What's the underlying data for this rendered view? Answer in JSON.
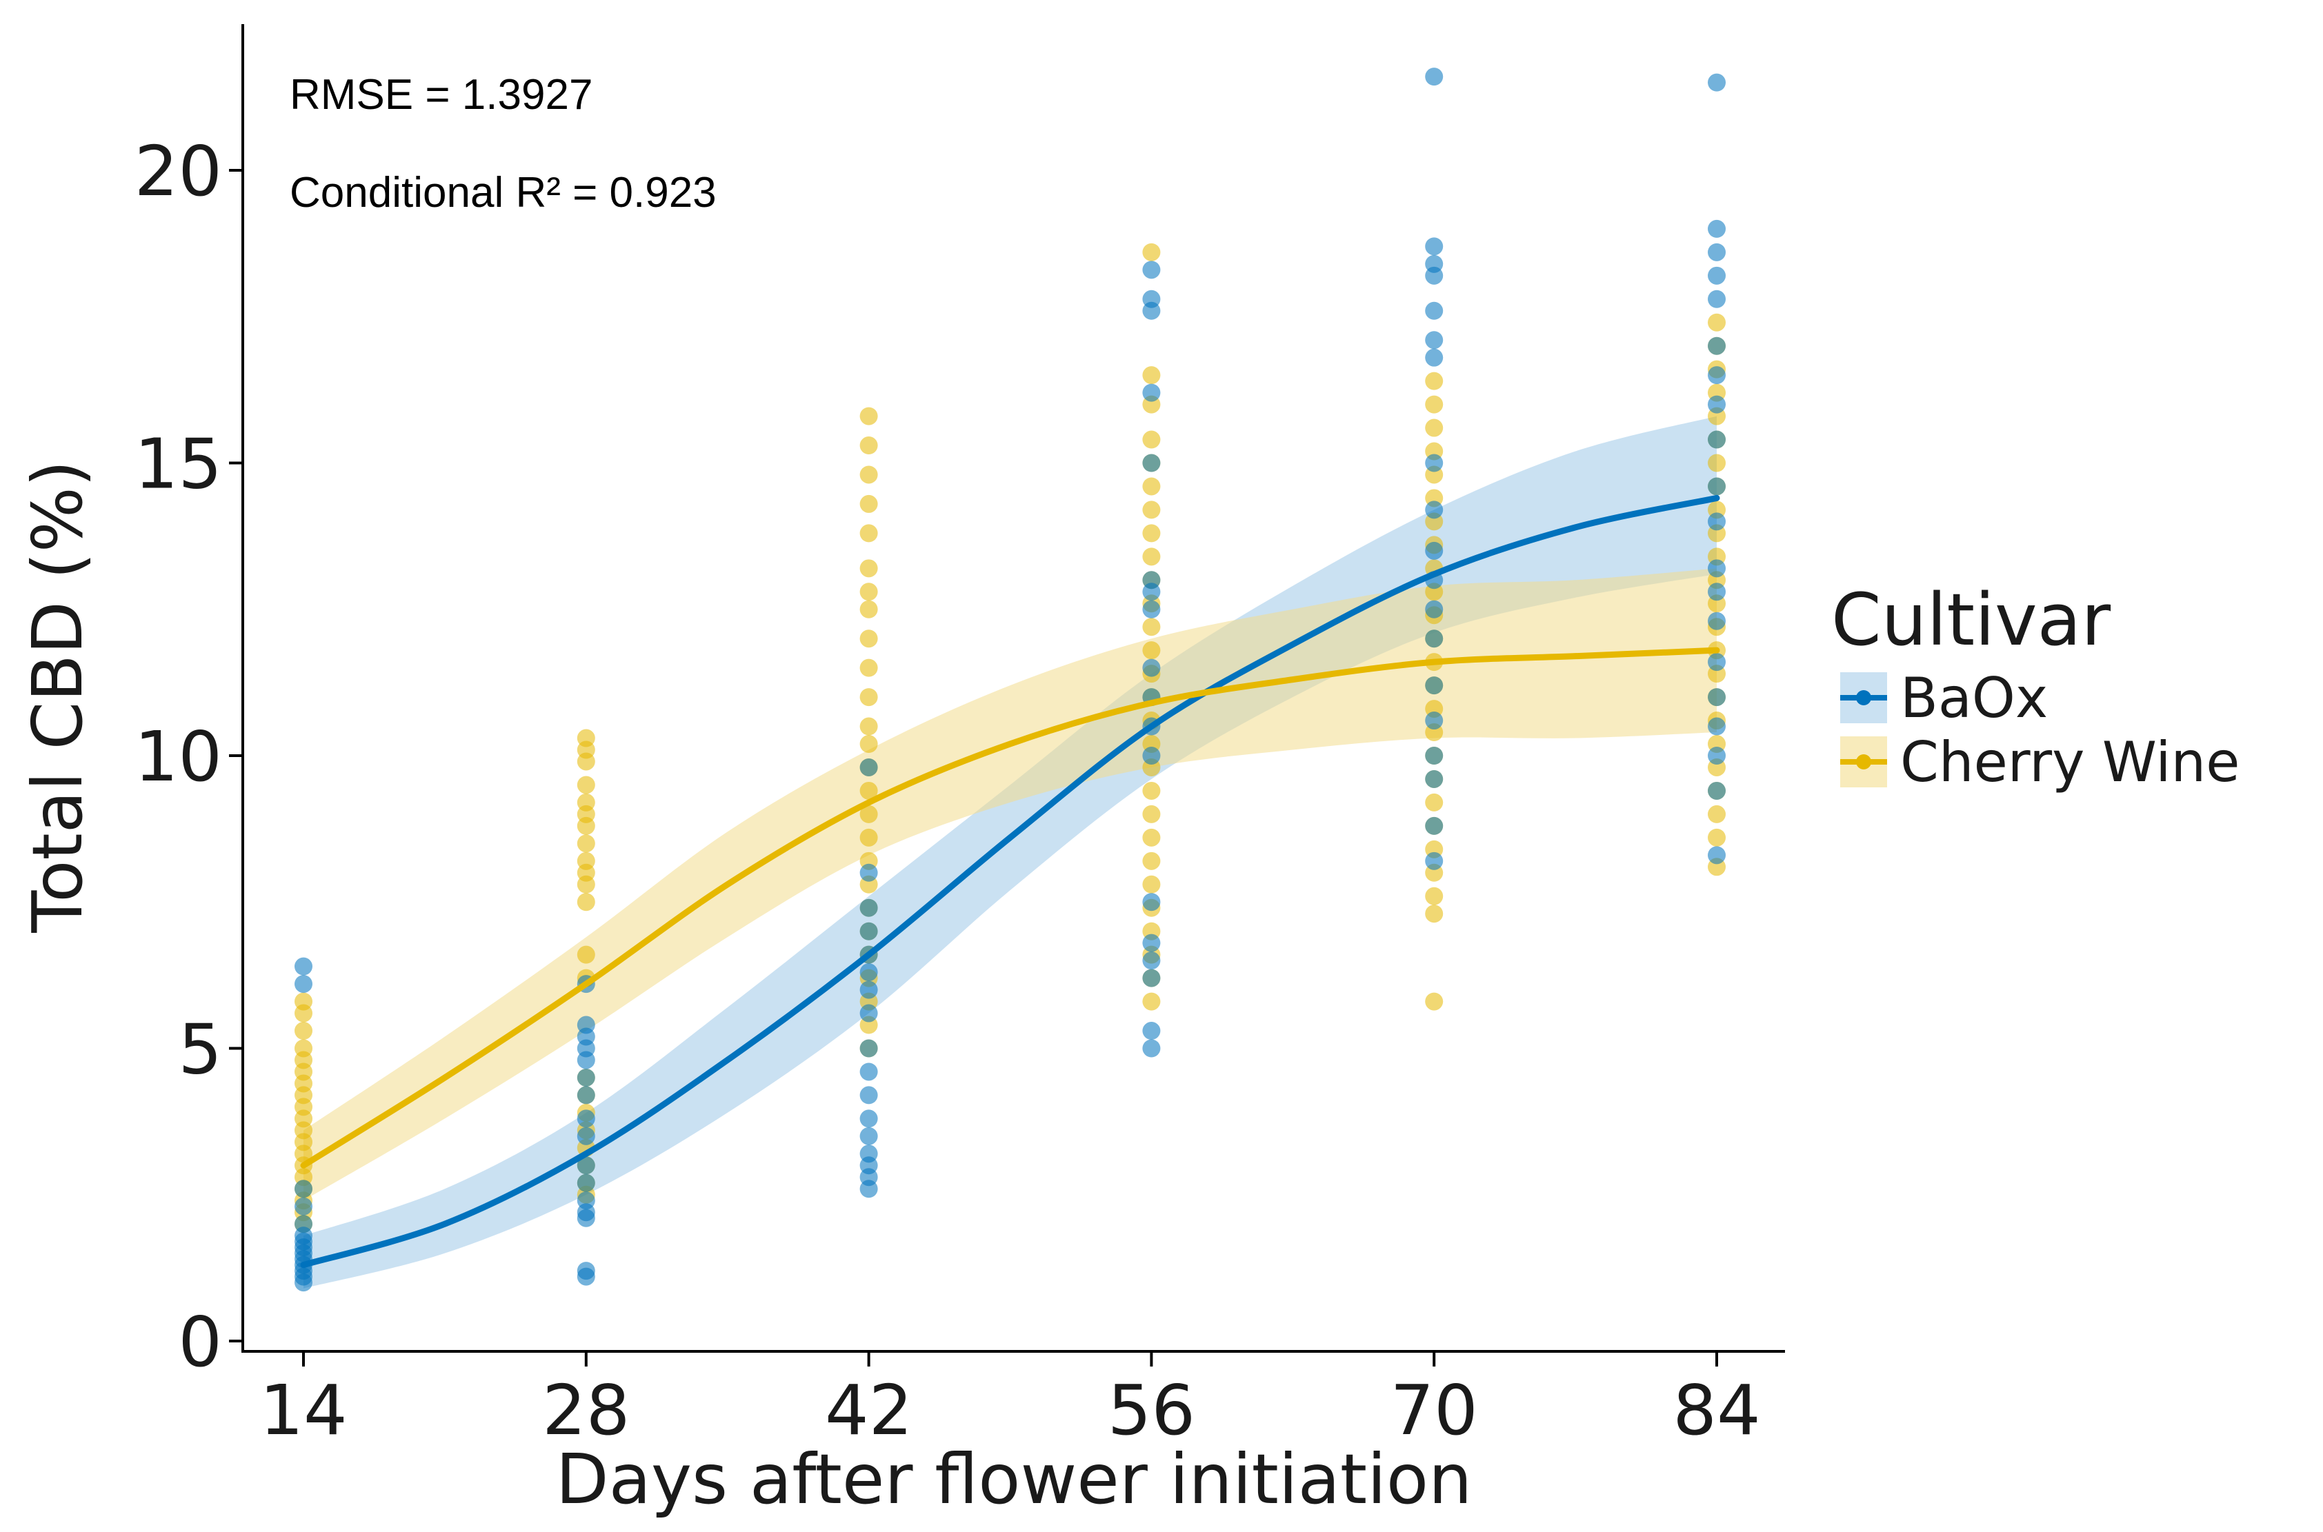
{
  "chart_data": {
    "type": "scatter",
    "xlabel": "Days after flower initiation",
    "ylabel": "Total CBD (%)",
    "xlim": [
      12,
      86
    ],
    "ylim": [
      -0.3,
      22.5
    ],
    "xticks": [
      14,
      28,
      42,
      56,
      70,
      84
    ],
    "xtick_labels": [
      "14",
      "28",
      "42",
      "56",
      "70",
      "84"
    ],
    "yticks": [
      0,
      5,
      10,
      15,
      20
    ],
    "ytick_labels": [
      "0",
      "5",
      "10",
      "15",
      "20"
    ],
    "annotations": [
      "RMSE = 1.3927",
      "Conditional R² = 0.923"
    ],
    "legend": {
      "title": "Cultivar",
      "position": "right"
    },
    "series": [
      {
        "name": "BaOx",
        "color": "#0072bd",
        "band_color": "#9fc8e8",
        "fit": {
          "x": [
            14,
            21,
            28,
            35,
            42,
            49,
            56,
            63,
            70,
            77,
            84
          ],
          "y": [
            1.3,
            2.0,
            3.2,
            4.8,
            6.6,
            8.6,
            10.5,
            11.9,
            13.1,
            13.9,
            14.4
          ],
          "lower": [
            0.9,
            1.5,
            2.5,
            3.9,
            5.6,
            7.7,
            9.6,
            11.0,
            12.1,
            12.7,
            13.1
          ],
          "upper": [
            1.8,
            2.6,
            3.9,
            5.7,
            7.6,
            9.5,
            11.4,
            12.9,
            14.2,
            15.2,
            15.8
          ]
        },
        "points": [
          {
            "x": 14,
            "y": [
              6.4,
              6.1,
              2.0,
              1.8,
              1.7,
              1.6,
              1.5,
              1.4,
              1.3,
              1.2,
              1.1,
              1.0,
              2.3,
              2.6
            ]
          },
          {
            "x": 28,
            "y": [
              6.1,
              5.4,
              5.2,
              5.0,
              4.8,
              4.5,
              4.2,
              3.8,
              3.5,
              3.0,
              2.7,
              2.4,
              2.2,
              2.1,
              1.2,
              1.1
            ]
          },
          {
            "x": 42,
            "y": [
              9.8,
              8.0,
              7.4,
              7.0,
              6.6,
              6.3,
              6.0,
              5.6,
              5.0,
              4.6,
              4.2,
              3.8,
              3.5,
              3.2,
              3.0,
              2.8,
              2.6
            ]
          },
          {
            "x": 56,
            "y": [
              18.3,
              17.8,
              17.6,
              16.2,
              15.0,
              13.0,
              12.8,
              12.5,
              11.5,
              11.0,
              10.5,
              10.0,
              7.5,
              6.8,
              6.5,
              6.2,
              5.3,
              5.0
            ]
          },
          {
            "x": 70,
            "y": [
              21.6,
              18.7,
              18.4,
              18.2,
              17.6,
              17.1,
              16.8,
              15.0,
              14.2,
              13.5,
              13.0,
              12.5,
              12.0,
              11.2,
              10.6,
              10.0,
              9.6,
              8.8,
              8.2
            ]
          },
          {
            "x": 84,
            "y": [
              21.5,
              19.0,
              18.6,
              18.2,
              17.8,
              17.0,
              16.5,
              16.0,
              15.4,
              14.6,
              14.0,
              13.2,
              12.8,
              12.3,
              11.6,
              11.0,
              10.5,
              10.0,
              9.4,
              8.3
            ]
          }
        ]
      },
      {
        "name": "Cherry Wine",
        "color": "#e6b800",
        "band_color": "#f3dd8e",
        "fit": {
          "x": [
            14,
            21,
            28,
            35,
            42,
            49,
            56,
            63,
            70,
            77,
            84
          ],
          "y": [
            3.0,
            4.5,
            6.1,
            7.8,
            9.2,
            10.2,
            10.9,
            11.3,
            11.6,
            11.7,
            11.8
          ],
          "lower": [
            2.4,
            3.8,
            5.3,
            6.9,
            8.3,
            9.2,
            9.8,
            10.1,
            10.3,
            10.3,
            10.4
          ],
          "upper": [
            3.6,
            5.2,
            6.9,
            8.7,
            10.1,
            11.2,
            12.0,
            12.5,
            12.9,
            13.0,
            13.2
          ]
        },
        "points": [
          {
            "x": 14,
            "y": [
              5.8,
              5.6,
              5.3,
              5.0,
              4.8,
              4.6,
              4.4,
              4.2,
              4.0,
              3.8,
              3.6,
              3.4,
              3.2,
              3.0,
              2.8,
              2.6,
              2.4,
              2.2,
              2.0
            ]
          },
          {
            "x": 28,
            "y": [
              10.3,
              10.1,
              9.9,
              9.5,
              9.2,
              9.0,
              8.8,
              8.5,
              8.2,
              8.0,
              7.8,
              7.5,
              6.6,
              6.2,
              4.5,
              4.2,
              3.9,
              3.6,
              3.3,
              3.0,
              2.7,
              2.5
            ]
          },
          {
            "x": 42,
            "y": [
              15.8,
              15.3,
              14.8,
              14.3,
              13.8,
              13.2,
              12.8,
              12.5,
              12.0,
              11.5,
              11.0,
              10.5,
              10.2,
              9.8,
              9.4,
              9.0,
              8.6,
              8.2,
              7.8,
              7.4,
              7.0,
              6.6,
              6.2,
              5.8,
              5.4,
              5.0
            ]
          },
          {
            "x": 56,
            "y": [
              18.6,
              16.5,
              16.0,
              15.4,
              15.0,
              14.6,
              14.2,
              13.8,
              13.4,
              13.0,
              12.6,
              12.2,
              11.8,
              11.4,
              11.0,
              10.6,
              10.2,
              9.8,
              9.4,
              9.0,
              8.6,
              8.2,
              7.8,
              7.4,
              7.0,
              6.6,
              6.2,
              5.8
            ]
          },
          {
            "x": 70,
            "y": [
              16.4,
              16.0,
              15.6,
              15.2,
              14.8,
              14.4,
              14.0,
              13.6,
              13.2,
              12.8,
              12.4,
              12.0,
              11.6,
              11.2,
              10.8,
              10.4,
              10.0,
              9.6,
              9.2,
              8.8,
              8.4,
              8.0,
              7.6,
              7.3,
              5.8
            ]
          },
          {
            "x": 84,
            "y": [
              17.4,
              17.0,
              16.6,
              16.2,
              15.8,
              15.4,
              15.0,
              14.6,
              14.2,
              13.8,
              13.4,
              13.0,
              12.6,
              12.2,
              11.8,
              11.4,
              11.0,
              10.6,
              10.2,
              9.8,
              9.4,
              9.0,
              8.6,
              8.1
            ]
          }
        ]
      }
    ]
  }
}
